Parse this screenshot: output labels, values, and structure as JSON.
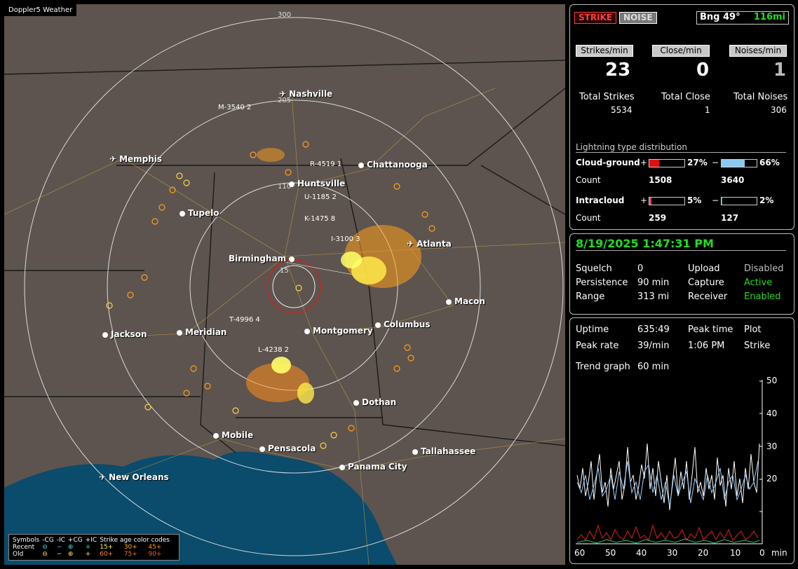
{
  "map": {
    "title": "Doppler5 Weather",
    "range_labels": [
      "300",
      "205",
      "110",
      "15"
    ],
    "cities": [
      {
        "name": "Nashville",
        "marker": "airport"
      },
      {
        "name": "Chattanooga",
        "marker": "dot"
      },
      {
        "name": "Memphis",
        "marker": "airport"
      },
      {
        "name": "Huntsville",
        "marker": "dot"
      },
      {
        "name": "Tupelo",
        "marker": "dot"
      },
      {
        "name": "Atlanta",
        "marker": "airport"
      },
      {
        "name": "Birmingham",
        "marker": "dot"
      },
      {
        "name": "Macon",
        "marker": "dot"
      },
      {
        "name": "Jackson",
        "marker": "dot"
      },
      {
        "name": "Meridian",
        "marker": "dot"
      },
      {
        "name": "Montgomery",
        "marker": "dot"
      },
      {
        "name": "Columbus",
        "marker": "dot"
      },
      {
        "name": "Dothan",
        "marker": "dot"
      },
      {
        "name": "Mobile",
        "marker": "dot"
      },
      {
        "name": "Pensacola",
        "marker": "dot"
      },
      {
        "name": "Tallahassee",
        "marker": "dot"
      },
      {
        "name": "Panama City",
        "marker": "dot"
      },
      {
        "name": "New Orleans",
        "marker": "airport"
      }
    ],
    "strike_labels": [
      "M-3540  2",
      "R-4519  1",
      "U-1185  2",
      "K-1475  8",
      "I-3100  3",
      "T-4996  4",
      "L-4238  2"
    ],
    "legend": {
      "symbols_label": "Symbols",
      "cols": [
        "-CG",
        "-IC",
        "+CG",
        "+IC"
      ],
      "age_label": "Strike age color codes",
      "recent_label": "Recent",
      "old_label": "Old",
      "recent_ages": [
        "15+",
        "30+",
        "45+"
      ],
      "old_ages": [
        "60+",
        "75+",
        "90+"
      ]
    }
  },
  "status": {
    "strike_btn": "STRIKE",
    "noise_btn": "NOISE",
    "bearing": "Bng 49°",
    "distance": "116mi",
    "strikes_min_label": "Strikes/min",
    "close_min_label": "Close/min",
    "noises_min_label": "Noises/min",
    "strikes_min": "23",
    "close_min": "0",
    "noises_min": "1",
    "total_strikes_label": "Total Strikes",
    "total_close_label": "Total Close",
    "total_noises_label": "Total Noises",
    "total_strikes": "5534",
    "total_close": "1",
    "total_noises": "306",
    "distribution_label": "Lightning type distribution",
    "cg_label": "Cloud-ground",
    "ic_label": "Intracloud",
    "count_label": "Count",
    "plus": "+",
    "minus": "−",
    "cg_pos_pct": "27%",
    "cg_neg_pct": "66%",
    "cg_pos_count": "1508",
    "cg_neg_count": "3640",
    "ic_pos_pct": "5%",
    "ic_neg_pct": "2%",
    "ic_pos_count": "259",
    "ic_neg_count": "127",
    "cg_pos_frac": 0.27,
    "cg_neg_frac": 0.66,
    "ic_pos_frac": 0.05,
    "ic_neg_frac": 0.02
  },
  "settings": {
    "datetime": "8/19/2025 1:47:31 PM",
    "squelch_label": "Squelch",
    "squelch": "0",
    "persistence_label": "Persistence",
    "persistence": "90 min",
    "range_label": "Range",
    "range": "313 mi",
    "upload_label": "Upload",
    "upload": "Disabled",
    "capture_label": "Capture",
    "capture": "Active",
    "receiver_label": "Receiver",
    "receiver": "Enabled"
  },
  "trend": {
    "uptime_label": "Uptime",
    "uptime": "635:49",
    "peak_time_label": "Peak time",
    "plot_label": "Plot",
    "peak_rate_label": "Peak rate",
    "peak_rate": "39/min",
    "peak_time": "1:06 PM",
    "plot": "Strike",
    "trend_graph_label": "Trend graph",
    "trend_graph": "60 min",
    "y_ticks": [
      "50",
      "40",
      "30",
      "20"
    ],
    "x_ticks": [
      "60",
      "50",
      "40",
      "30",
      "20",
      "10",
      "0"
    ],
    "x_unit": "min"
  }
}
